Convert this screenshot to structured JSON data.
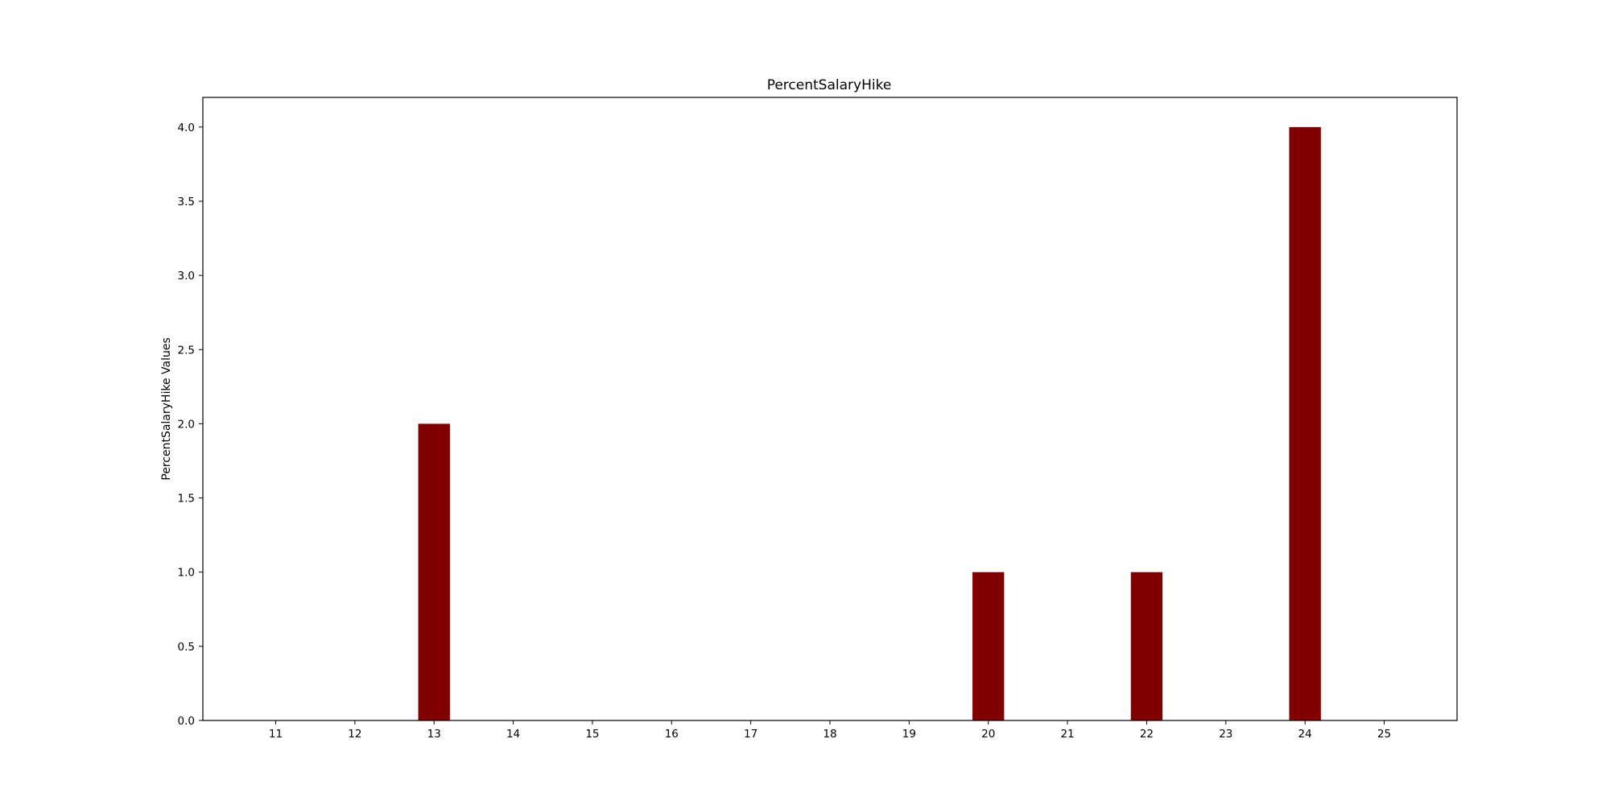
{
  "chart_data": {
    "type": "bar",
    "title": "PercentSalaryHike",
    "xlabel": "",
    "ylabel": "PercentSalaryHike Values",
    "categories": [
      "11",
      "12",
      "13",
      "14",
      "15",
      "16",
      "17",
      "18",
      "19",
      "20",
      "21",
      "22",
      "23",
      "24",
      "25"
    ],
    "x": [
      13,
      20,
      22,
      24
    ],
    "values": [
      2,
      1,
      1,
      4
    ],
    "x_ticks": [
      11,
      12,
      13,
      14,
      15,
      16,
      17,
      18,
      19,
      20,
      21,
      22,
      23,
      24,
      25
    ],
    "x_tick_labels": [
      "11",
      "12",
      "13",
      "14",
      "15",
      "16",
      "17",
      "18",
      "19",
      "20",
      "21",
      "22",
      "23",
      "24",
      "25"
    ],
    "y_ticks": [
      0.0,
      0.5,
      1.0,
      1.5,
      2.0,
      2.5,
      3.0,
      3.5,
      4.0
    ],
    "y_tick_labels": [
      "0.0",
      "0.5",
      "1.0",
      "1.5",
      "2.0",
      "2.5",
      "3.0",
      "3.5",
      "4.0"
    ],
    "xlim": [
      10.08,
      25.92
    ],
    "ylim": [
      0,
      4.2
    ],
    "grid": false,
    "legend": "none",
    "bar_color": "#800000"
  }
}
